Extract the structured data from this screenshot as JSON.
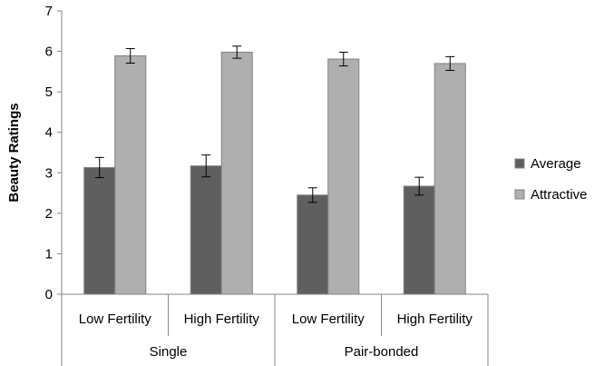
{
  "chart_data": {
    "type": "bar",
    "ylabel": "Beauty Ratings",
    "xlabel": "",
    "title": "",
    "ylim": [
      0,
      7
    ],
    "yticks": [
      "0",
      "1",
      "2",
      "3",
      "4",
      "5",
      "6",
      "7"
    ],
    "grid": false,
    "legend_position": "right",
    "groups": [
      {
        "label": "Single",
        "categories": [
          "Low Fertility",
          "High Fertility"
        ]
      },
      {
        "label": "Pair-bonded",
        "categories": [
          "Low Fertility",
          "High Fertility"
        ]
      }
    ],
    "categories": [
      "Low Fertility",
      "High Fertility",
      "Low Fertility",
      "High Fertility"
    ],
    "series": [
      {
        "name": "Average",
        "color": "#5f5f5f",
        "values": [
          3.13,
          3.17,
          2.45,
          2.67
        ],
        "errors": [
          0.25,
          0.27,
          0.18,
          0.22
        ]
      },
      {
        "name": "Attractive",
        "color": "#afafaf",
        "values": [
          5.89,
          5.98,
          5.81,
          5.7
        ],
        "errors": [
          0.18,
          0.15,
          0.17,
          0.17
        ]
      }
    ]
  }
}
